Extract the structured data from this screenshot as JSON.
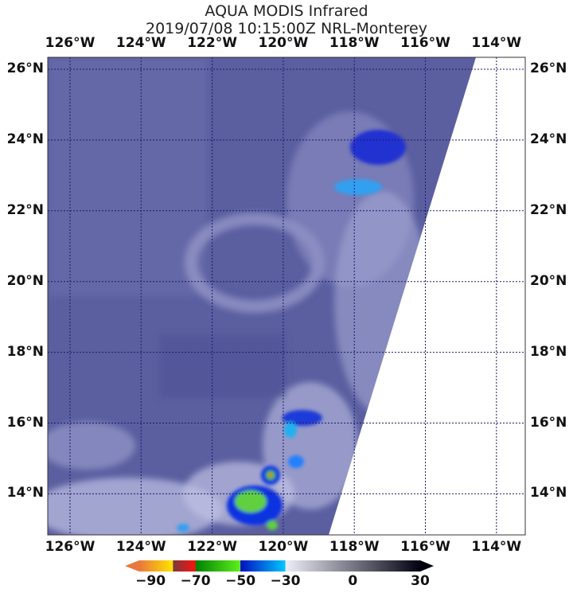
{
  "title": "AQUA MODIS Infrared",
  "subtitle": "2019/07/08 10:15:00Z NRL-Monterey",
  "longitude_labels": [
    "126°W",
    "124°W",
    "122°W",
    "120°W",
    "118°W",
    "116°W",
    "114°W"
  ],
  "latitude_labels": [
    "26°N",
    "24°N",
    "22°N",
    "20°N",
    "18°N",
    "16°N",
    "14°N"
  ],
  "colorbar": {
    "ticks": [
      "−90",
      "−70",
      "−50",
      "−30",
      "0",
      "30"
    ],
    "range": [
      -95,
      30
    ],
    "segments": [
      {
        "from": -95,
        "to": -80,
        "colors": [
          "#e8783c",
          "#ffe600"
        ]
      },
      {
        "from": -80,
        "to": -70,
        "colors": [
          "#7a3a3a",
          "#ff1010"
        ]
      },
      {
        "from": -70,
        "to": -50,
        "colors": [
          "#008000",
          "#60f020"
        ]
      },
      {
        "from": -50,
        "to": -30,
        "colors": [
          "#0010c0",
          "#00c8ff"
        ]
      },
      {
        "from": -30,
        "to": 30,
        "colors": [
          "#eeeef8",
          "#000010"
        ]
      }
    ]
  },
  "colors": {
    "background_ocean": "#5b5fa0",
    "no_data": "#ffffff",
    "grid": "#1a1a6a"
  }
}
